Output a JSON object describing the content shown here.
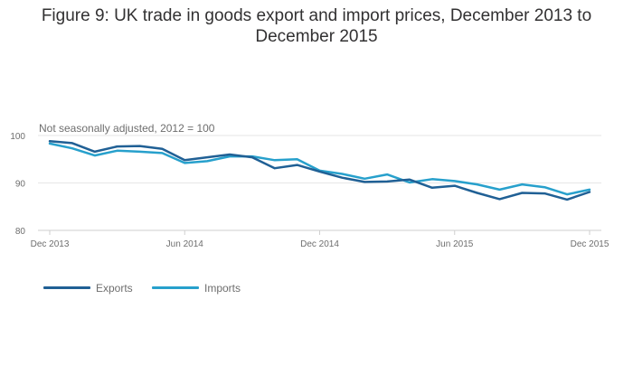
{
  "chart_data": {
    "type": "line",
    "title": "Figure 9: UK trade in goods export and import prices, December 2013 to December 2015",
    "subtitle": "Not seasonally adjusted, 2012 = 100",
    "xlabel": "",
    "ylabel": "",
    "ylim": [
      80,
      100
    ],
    "yticks": [
      80,
      90,
      100
    ],
    "x": [
      "Dec 2013",
      "Jan 2014",
      "Feb 2014",
      "Mar 2014",
      "Apr 2014",
      "May 2014",
      "Jun 2014",
      "Jul 2014",
      "Aug 2014",
      "Sep 2014",
      "Oct 2014",
      "Nov 2014",
      "Dec 2014",
      "Jan 2015",
      "Feb 2015",
      "Mar 2015",
      "Apr 2015",
      "May 2015",
      "Jun 2015",
      "Jul 2015",
      "Aug 2015",
      "Sep 2015",
      "Oct 2015",
      "Nov 2015",
      "Dec 2015"
    ],
    "xtick_labels": [
      "Dec 2013",
      "Jun 2014",
      "Dec 2014",
      "Jun 2015",
      "Dec 2015"
    ],
    "grid": true,
    "legend_position": "bottom-left",
    "series": [
      {
        "name": "Exports",
        "color": "#206095",
        "values": [
          98.8,
          98.4,
          96.6,
          97.7,
          97.8,
          97.2,
          94.8,
          95.4,
          96.0,
          95.4,
          93.1,
          93.8,
          92.4,
          91.1,
          90.2,
          90.3,
          90.7,
          89.0,
          89.4,
          87.9,
          86.6,
          87.9,
          87.8,
          86.5,
          88.1
        ]
      },
      {
        "name": "Imports",
        "color": "#27a0cc",
        "values": [
          98.3,
          97.3,
          95.8,
          96.8,
          96.6,
          96.3,
          94.2,
          94.6,
          95.6,
          95.6,
          94.8,
          95.0,
          92.6,
          91.9,
          90.9,
          91.8,
          90.1,
          90.8,
          90.4,
          89.7,
          88.6,
          89.7,
          89.1,
          87.6,
          88.6
        ]
      }
    ]
  }
}
